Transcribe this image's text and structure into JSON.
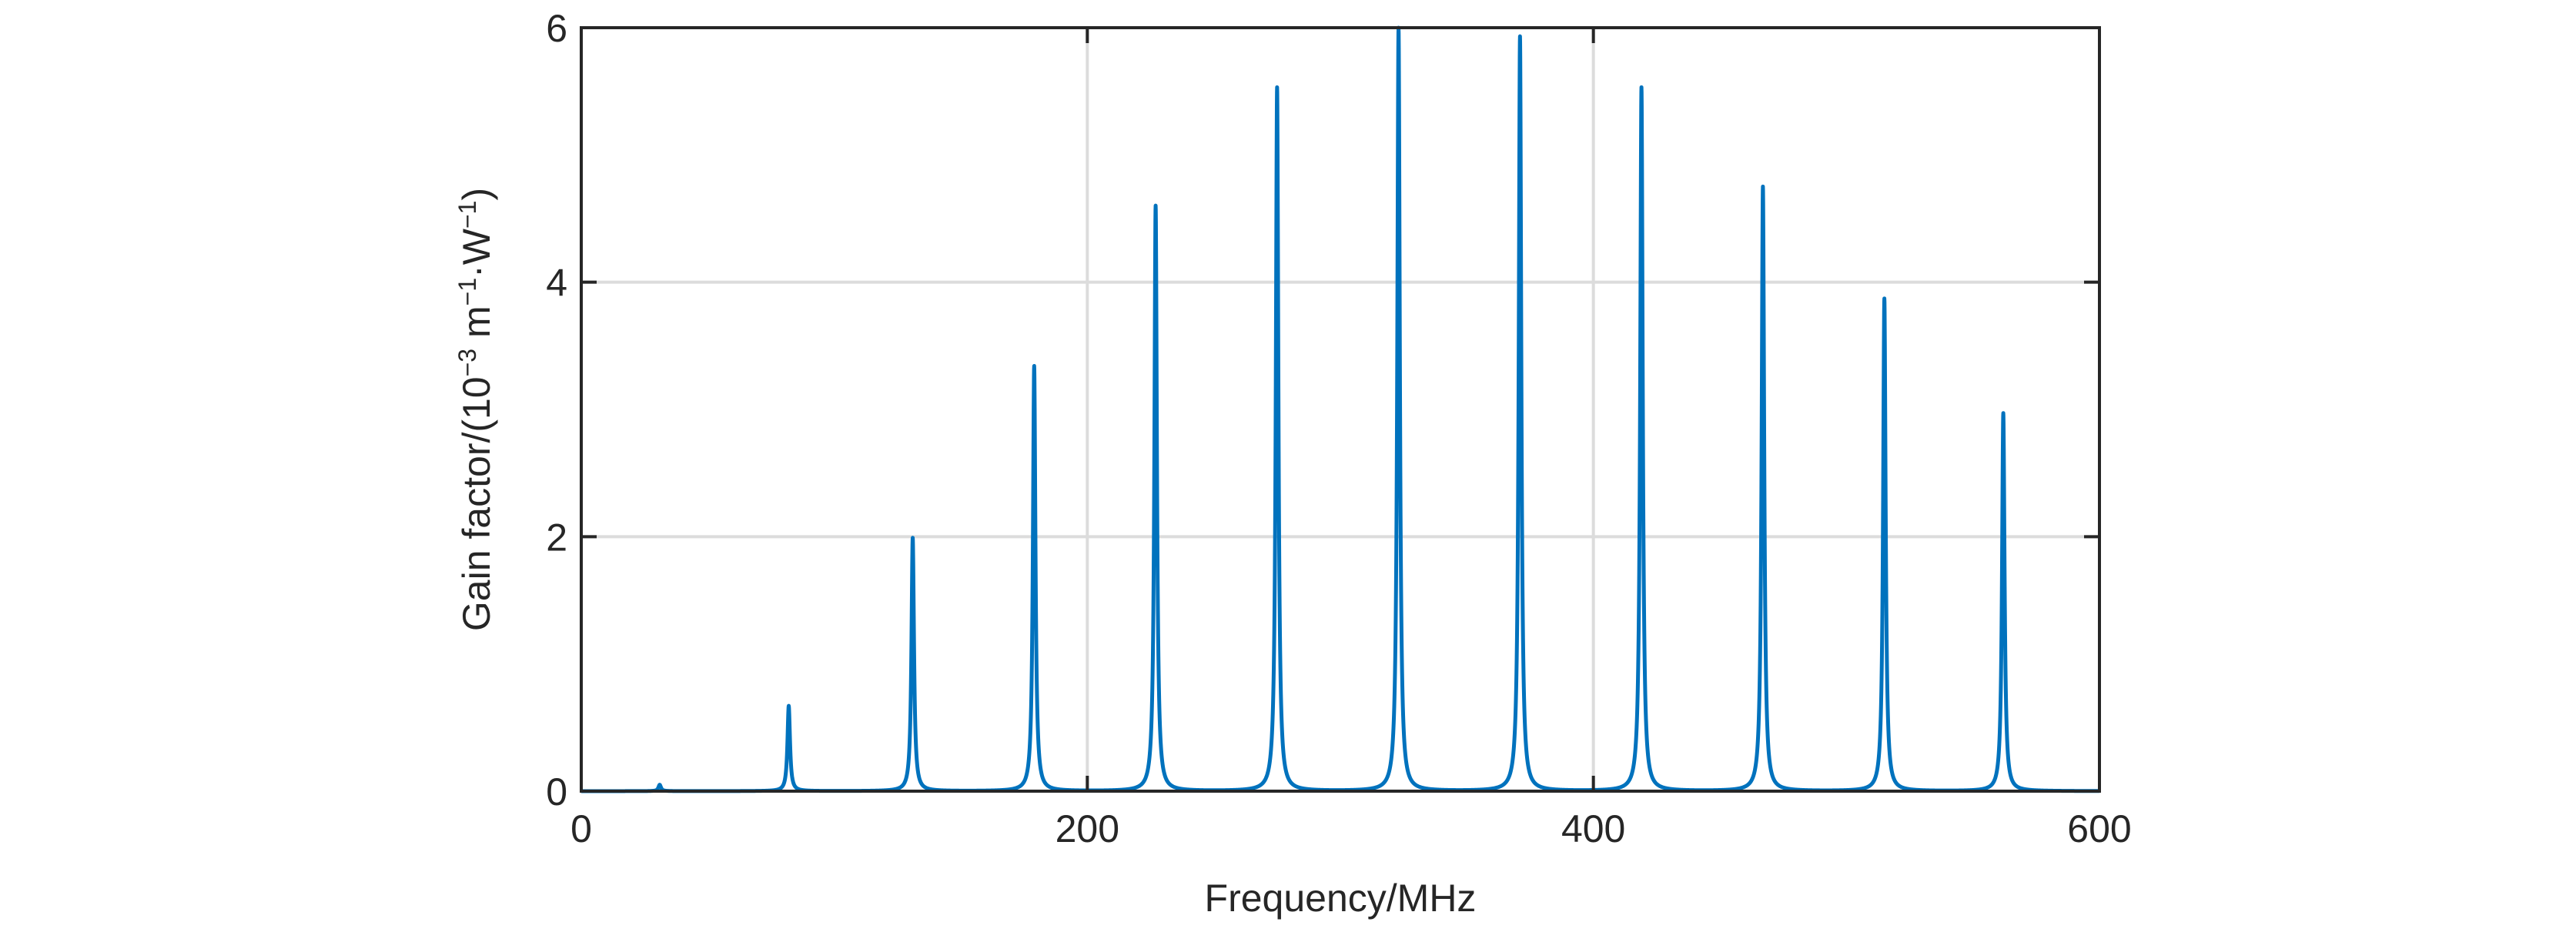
{
  "chart_data": {
    "type": "line",
    "title": "",
    "xlabel": "Frequency/MHz",
    "ylabel": {
      "prefix": "Gain factor/(10",
      "exp1": "−3",
      "mid1": " m",
      "exp2": "−1",
      "mid2": "·W",
      "exp3": "−1",
      "suffix": ")"
    },
    "xlim": [
      0,
      600
    ],
    "ylim": [
      0,
      6
    ],
    "x_ticks": [
      0,
      200,
      400,
      600
    ],
    "y_ticks": [
      0,
      2,
      4,
      6
    ],
    "x_tick_labels": [
      "0",
      "200",
      "400",
      "600"
    ],
    "y_tick_labels": [
      "0",
      "2",
      "4",
      "6"
    ],
    "grid": true,
    "line_color": "#0072BD",
    "series": [
      {
        "peaks": [
          {
            "x": 31,
            "y": 0.05
          },
          {
            "x": 82,
            "y": 0.67
          },
          {
            "x": 131,
            "y": 1.99
          },
          {
            "x": 179,
            "y": 3.34
          },
          {
            "x": 227,
            "y": 4.6
          },
          {
            "x": 275,
            "y": 5.53
          },
          {
            "x": 323,
            "y": 6.0
          },
          {
            "x": 371,
            "y": 5.93
          },
          {
            "x": 419,
            "y": 5.53
          },
          {
            "x": 467,
            "y": 4.75
          },
          {
            "x": 515,
            "y": 3.87
          },
          {
            "x": 562,
            "y": 2.97
          }
        ],
        "peak_half_width_mhz": 0.6
      }
    ]
  }
}
